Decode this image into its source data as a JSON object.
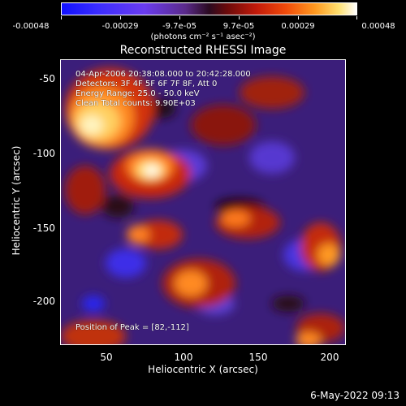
{
  "colorbar": {
    "labels": [
      "-0.00048",
      "-0.00029",
      "-9.7e-05",
      "9.7e-05",
      "0.00029",
      "0.00048"
    ],
    "units": "(photons cm⁻² s⁻¹ asec⁻²)"
  },
  "title": "Reconstructed RHESSI Image",
  "annotation": {
    "line1": "04-Apr-2006 20:38:08.000 to 20:42:28.000",
    "line2": "Detectors: 3F 4F 5F 6F 7F 8F, Att 0",
    "line3": "Energy Range: 25.0 - 50.0 keV",
    "line4": "Clean    Total counts: 9.90E+03",
    "peak": "Position of Peak = [82,-112]"
  },
  "axes": {
    "xlabel": "Heliocentric X (arcsec)",
    "ylabel": "Heliocentric Y (arcsec)",
    "xticks": [
      "50",
      "100",
      "150",
      "200"
    ],
    "yticks": [
      "-50",
      "-100",
      "-150",
      "-200"
    ],
    "xrange": [
      20,
      210
    ],
    "yrange": [
      -228,
      -38
    ]
  },
  "timestamp": "6-May-2022 09:13"
}
